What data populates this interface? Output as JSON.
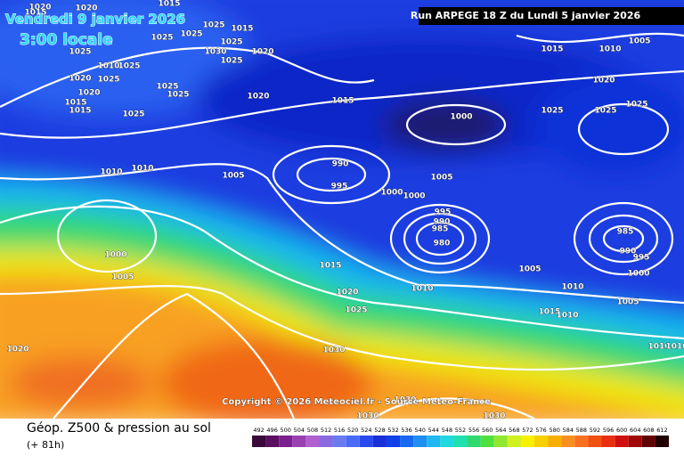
{
  "header": {
    "run": "Run ARPEGE 18 Z du Lundi 5 janvier 2026",
    "valid_date": "Vendredi 9 janvier 2026",
    "valid_time": "3:00 locale"
  },
  "copyright": "Copyright © 2026 Meteociel.fr - Source Meteo-France",
  "footer": {
    "title": "Géop. Z500 & pression au sol",
    "lead": "(+ 81h)"
  },
  "legend": {
    "ticks": [
      492,
      496,
      500,
      504,
      508,
      512,
      516,
      520,
      524,
      528,
      532,
      536,
      540,
      544,
      548,
      552,
      556,
      560,
      564,
      568,
      572,
      576,
      580,
      584,
      588,
      592,
      596,
      600,
      604,
      608,
      612
    ],
    "colors": [
      "#3a0a3a",
      "#5a1060",
      "#7a2090",
      "#9a40b0",
      "#b060d0",
      "#8a6ae0",
      "#6a7af0",
      "#4a6af8",
      "#2a4af0",
      "#1a30d8",
      "#1040e8",
      "#1868f0",
      "#2090f0",
      "#20b8f0",
      "#20d8e0",
      "#20e0b0",
      "#30d870",
      "#50e040",
      "#90e830",
      "#d0f020",
      "#f8f000",
      "#f8d000",
      "#f8b000",
      "#f89020",
      "#f87020",
      "#f05010",
      "#e83010",
      "#d01010",
      "#a00808",
      "#600404",
      "#200000"
    ]
  },
  "isobar_labels": [
    "1020",
    "1015",
    "1020",
    "1015",
    "1025",
    "1025",
    "1025",
    "1015",
    "1025",
    "1020",
    "1025",
    "1030",
    "1025",
    "1010",
    "1025",
    "1020",
    "1025",
    "1020",
    "1025",
    "1025",
    "1015",
    "1015",
    "1025",
    "1020",
    "1015",
    "1000",
    "1015",
    "1010",
    "1005",
    "1020",
    "1025",
    "1025",
    "1025",
    "1010",
    "1010",
    "1005",
    "990",
    "995",
    "1000",
    "1000",
    "1005",
    "995",
    "990",
    "985",
    "980",
    "985",
    "990",
    "995",
    "1000",
    "1005",
    "1015",
    "1020",
    "1025",
    "1010",
    "1005",
    "1010",
    "1015",
    "1010",
    "1000",
    "1005",
    "1020",
    "1030",
    "1030",
    "1030",
    "1030",
    "1010",
    "1010"
  ]
}
